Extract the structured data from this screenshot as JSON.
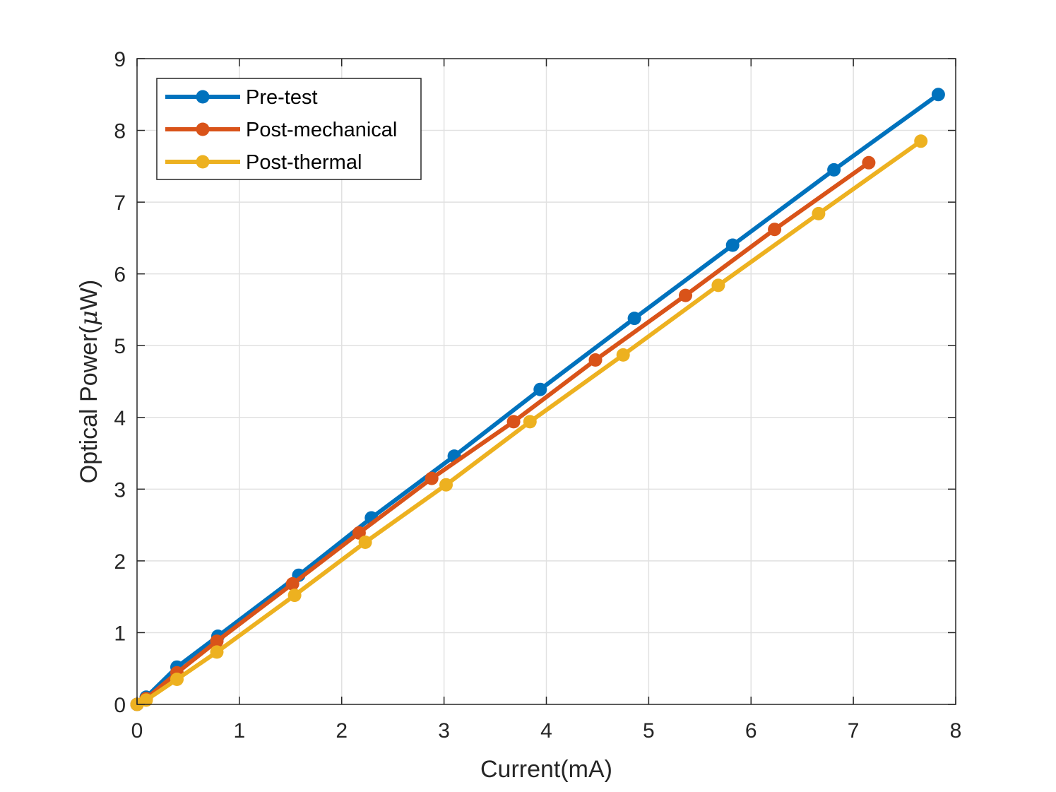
{
  "chart_data": {
    "type": "line",
    "xlabel": "Current(mA)",
    "ylabel_text": "Optical Power(",
    "ylabel_symbol": "μ",
    "ylabel_unit": "W)",
    "xlim": [
      0,
      8
    ],
    "ylim": [
      0,
      9
    ],
    "xticks": [
      "0",
      "1",
      "2",
      "3",
      "4",
      "5",
      "6",
      "7",
      "8"
    ],
    "yticks": [
      "0",
      "1",
      "2",
      "3",
      "4",
      "5",
      "6",
      "7",
      "8",
      "9"
    ],
    "grid": true,
    "legend_position": "top-left",
    "series": [
      {
        "name": "Pre-test",
        "color": "#0072bd",
        "x": [
          0,
          0.09,
          0.39,
          0.79,
          1.58,
          2.29,
          3.1,
          3.94,
          4.86,
          5.82,
          6.81,
          7.83
        ],
        "y": [
          0,
          0.1,
          0.52,
          0.95,
          1.8,
          2.6,
          3.46,
          4.39,
          5.38,
          6.4,
          7.45,
          8.5
        ]
      },
      {
        "name": "Post-mechanical",
        "color": "#d95319",
        "x": [
          0,
          0.09,
          0.39,
          0.78,
          1.52,
          2.17,
          2.88,
          3.68,
          4.48,
          5.36,
          6.23,
          7.15
        ],
        "y": [
          0,
          0.08,
          0.44,
          0.88,
          1.68,
          2.39,
          3.15,
          3.94,
          4.8,
          5.7,
          6.62,
          7.55
        ]
      },
      {
        "name": "Post-thermal",
        "color": "#edb120",
        "x": [
          0,
          0.09,
          0.39,
          0.78,
          1.54,
          2.23,
          3.02,
          3.84,
          4.75,
          5.68,
          6.66,
          7.66
        ],
        "y": [
          0,
          0.06,
          0.35,
          0.73,
          1.52,
          2.26,
          3.06,
          3.94,
          4.87,
          5.84,
          6.84,
          7.85
        ]
      }
    ]
  }
}
